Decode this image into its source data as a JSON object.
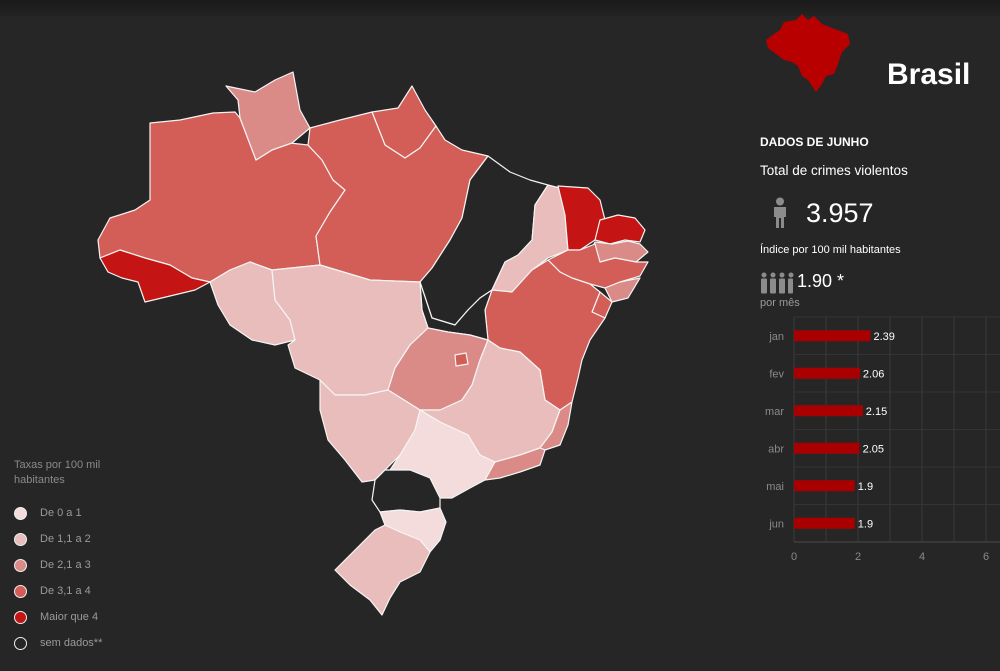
{
  "colors": {
    "background": "#262626",
    "class_0": "#f3dcdb",
    "class_1": "#e9bdbb",
    "class_2": "#da8b88",
    "class_3": "#d35d57",
    "class_4": "#c41414",
    "no_data": "#262626",
    "bar": "#a80000"
  },
  "legend": {
    "title": "Taxas por 100 mil habitantes",
    "items": [
      {
        "label": "De 0 a 1",
        "color": "#f3dcdb"
      },
      {
        "label": "De 1,1 a 2",
        "color": "#e9bdbb"
      },
      {
        "label": "De 2,1 a 3",
        "color": "#da8b88"
      },
      {
        "label": "De 3,1 a 4",
        "color": "#d35d57"
      },
      {
        "label": "Maior que 4",
        "color": "#c41414"
      },
      {
        "label": "sem dados**",
        "color": "#262626"
      }
    ]
  },
  "map": {
    "states": [
      {
        "id": "RR",
        "class": 2
      },
      {
        "id": "AP",
        "class": 3
      },
      {
        "id": "AM",
        "class": 3
      },
      {
        "id": "PA",
        "class": 3
      },
      {
        "id": "AC",
        "class": 4
      },
      {
        "id": "RO",
        "class": 1
      },
      {
        "id": "MA",
        "class": null
      },
      {
        "id": "PI",
        "class": 1
      },
      {
        "id": "CE",
        "class": 4
      },
      {
        "id": "RN",
        "class": 4
      },
      {
        "id": "PB",
        "class": 2
      },
      {
        "id": "PE",
        "class": 3
      },
      {
        "id": "AL",
        "class": 2
      },
      {
        "id": "SE",
        "class": 3
      },
      {
        "id": "BA",
        "class": 3
      },
      {
        "id": "TO",
        "class": null
      },
      {
        "id": "MT",
        "class": 1
      },
      {
        "id": "GO",
        "class": 2
      },
      {
        "id": "DF",
        "class": 3
      },
      {
        "id": "MG",
        "class": 1
      },
      {
        "id": "ES",
        "class": 2
      },
      {
        "id": "MS",
        "class": 1
      },
      {
        "id": "SP",
        "class": 0
      },
      {
        "id": "RJ",
        "class": 2
      },
      {
        "id": "PR",
        "class": null
      },
      {
        "id": "SC",
        "class": 0
      },
      {
        "id": "RS",
        "class": 1
      }
    ]
  },
  "panel": {
    "title": "Brasil",
    "section": "DADOS DE JUNHO",
    "total_label": "Total de crimes violentos",
    "total_value": "3.957",
    "rate_label": "Índice por 100 mil habitantes",
    "rate_value": "1.90 *",
    "rate_unit": "por mês"
  },
  "chart_data": {
    "type": "bar",
    "orientation": "horizontal",
    "categories": [
      "jan",
      "fev",
      "mar",
      "abr",
      "mai",
      "jun"
    ],
    "values": [
      2.39,
      2.06,
      2.15,
      2.05,
      1.9,
      1.9
    ],
    "value_labels": [
      "2.39",
      "2.06",
      "2.15",
      "2.05",
      "1.9",
      "1.9"
    ],
    "xlim": [
      0,
      7
    ],
    "xticks": [
      0,
      2,
      4,
      6
    ],
    "grid": true
  }
}
